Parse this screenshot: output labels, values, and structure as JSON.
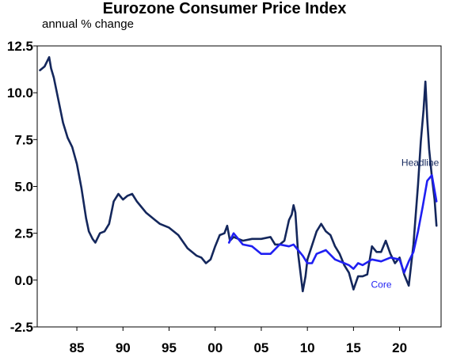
{
  "chart_data": {
    "type": "line",
    "title": "Eurozone Consumer Price Index",
    "subtitle": "annual % change",
    "xlabel": "",
    "ylabel": "",
    "xlim": [
      1980.7,
      2024.5
    ],
    "ylim": [
      -2.5,
      12.5
    ],
    "yticks": [
      "12.5",
      "10.0",
      "7.5",
      "5.0",
      "2.5",
      "0.0",
      "-2.5"
    ],
    "xticks": [
      {
        "label": "85",
        "year": 1985
      },
      {
        "label": "90",
        "year": 1990
      },
      {
        "label": "95",
        "year": 1995
      },
      {
        "label": "00",
        "year": 2000
      },
      {
        "label": "05",
        "year": 2005
      },
      {
        "label": "10",
        "year": 2010
      },
      {
        "label": "15",
        "year": 2015
      },
      {
        "label": "20",
        "year": 2020
      }
    ],
    "grid": false,
    "series": [
      {
        "name": "Headline",
        "color": "#14275c",
        "x": [
          1981.0,
          1981.5,
          1982.0,
          1982.2,
          1982.5,
          1983.0,
          1983.5,
          1984.0,
          1984.5,
          1985.0,
          1985.5,
          1986.0,
          1986.3,
          1986.7,
          1987.0,
          1987.5,
          1988.0,
          1988.5,
          1989.0,
          1989.5,
          1990.0,
          1990.5,
          1991.0,
          1991.5,
          1992.0,
          1992.5,
          1993.0,
          1993.5,
          1994.0,
          1995.0,
          1996.0,
          1997.0,
          1998.0,
          1998.5,
          1999.0,
          1999.5,
          2000.0,
          2000.5,
          2001.0,
          2001.3,
          2001.6,
          2002.0,
          2003.0,
          2004.0,
          2005.0,
          2006.0,
          2006.5,
          2007.0,
          2007.5,
          2008.0,
          2008.3,
          2008.5,
          2008.7,
          2009.0,
          2009.3,
          2009.5,
          2009.8,
          2010.0,
          2011.0,
          2011.5,
          2012.0,
          2012.5,
          2013.0,
          2013.5,
          2014.0,
          2014.5,
          2015.0,
          2015.5,
          2016.0,
          2016.5,
          2017.0,
          2017.5,
          2018.0,
          2018.5,
          2019.0,
          2019.5,
          2020.0,
          2020.5,
          2021.0,
          2021.5,
          2022.0,
          2022.3,
          2022.6,
          2022.8,
          2023.0,
          2023.2,
          2023.5,
          2023.8,
          2024.0
        ],
        "values": [
          11.2,
          11.4,
          11.9,
          11.3,
          10.8,
          9.6,
          8.4,
          7.6,
          7.1,
          6.2,
          4.9,
          3.3,
          2.6,
          2.2,
          2.0,
          2.5,
          2.6,
          3.0,
          4.2,
          4.6,
          4.3,
          4.5,
          4.6,
          4.2,
          3.9,
          3.6,
          3.4,
          3.2,
          3.0,
          2.8,
          2.4,
          1.7,
          1.3,
          1.2,
          0.9,
          1.1,
          1.8,
          2.4,
          2.5,
          2.9,
          2.1,
          2.3,
          2.1,
          2.2,
          2.2,
          2.3,
          1.9,
          1.9,
          2.1,
          3.2,
          3.5,
          4.0,
          3.6,
          1.4,
          0.2,
          -0.6,
          0.2,
          1.1,
          2.6,
          3.0,
          2.6,
          2.4,
          1.8,
          1.4,
          0.8,
          0.4,
          -0.5,
          0.2,
          0.2,
          0.3,
          1.8,
          1.5,
          1.5,
          2.1,
          1.4,
          0.9,
          1.2,
          0.3,
          -0.3,
          1.9,
          5.1,
          7.4,
          9.1,
          10.6,
          8.6,
          7.0,
          5.5,
          4.3,
          2.9
        ]
      },
      {
        "name": "Core",
        "color": "#1f1ff2",
        "x": [
          2001.5,
          2002.0,
          2003.0,
          2004.0,
          2005.0,
          2006.0,
          2007.0,
          2008.0,
          2008.5,
          2009.0,
          2009.5,
          2010.0,
          2010.5,
          2011.0,
          2012.0,
          2013.0,
          2013.5,
          2014.0,
          2014.5,
          2015.0,
          2015.5,
          2016.0,
          2017.0,
          2018.0,
          2019.0,
          2020.0,
          2020.5,
          2021.0,
          2021.5,
          2022.0,
          2022.5,
          2023.0,
          2023.5,
          2024.0
        ],
        "values": [
          2.0,
          2.5,
          1.9,
          1.8,
          1.4,
          1.4,
          1.9,
          1.8,
          1.9,
          1.6,
          1.3,
          0.9,
          0.9,
          1.4,
          1.6,
          1.1,
          1.0,
          0.9,
          0.8,
          0.6,
          0.9,
          0.8,
          1.1,
          1.0,
          1.2,
          1.1,
          0.4,
          1.0,
          1.5,
          2.6,
          3.9,
          5.3,
          5.6,
          4.2
        ]
      }
    ],
    "annotations": [
      {
        "text": "Headline",
        "year": 2020.2,
        "value": 6.1,
        "color": "#14275c"
      },
      {
        "text": "Core",
        "year": 2016.9,
        "value": -0.4,
        "color": "#1f1ff2"
      }
    ]
  }
}
